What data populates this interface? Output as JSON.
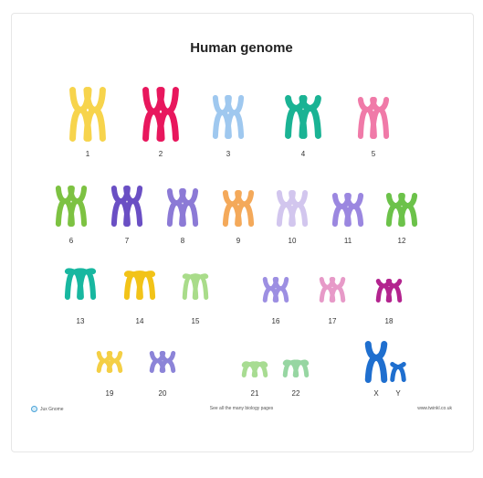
{
  "title": "Human genome",
  "footer": {
    "left": "Jux Gnome",
    "center": "See all the many biology pages",
    "right": "www.twinkl.co.uk"
  },
  "chromosomes": [
    {
      "label": "1",
      "color": "#f7d44c"
    },
    {
      "label": "2",
      "color": "#e8175d"
    },
    {
      "label": "3",
      "color": "#9fc8ef"
    },
    {
      "label": "4",
      "color": "#1ab394"
    },
    {
      "label": "5",
      "color": "#f07aa8"
    },
    {
      "label": "6",
      "color": "#7dc242"
    },
    {
      "label": "7",
      "color": "#6a4fc4"
    },
    {
      "label": "8",
      "color": "#8c7ad6"
    },
    {
      "label": "9",
      "color": "#f4a95a"
    },
    {
      "label": "10",
      "color": "#d2c6ee"
    },
    {
      "label": "11",
      "color": "#9b87e0"
    },
    {
      "label": "12",
      "color": "#6cc24a"
    },
    {
      "label": "13",
      "color": "#18b7a0"
    },
    {
      "label": "14",
      "color": "#f2c318"
    },
    {
      "label": "15",
      "color": "#a9dc8a"
    },
    {
      "label": "16",
      "color": "#9d8fe2"
    },
    {
      "label": "17",
      "color": "#e79ac8"
    },
    {
      "label": "18",
      "color": "#b3248f"
    },
    {
      "label": "19",
      "color": "#f4cf45"
    },
    {
      "label": "20",
      "color": "#8c84d8"
    },
    {
      "label": "21",
      "color": "#a8dc92"
    },
    {
      "label": "22",
      "color": "#97d6a2"
    },
    {
      "label": "X",
      "color": "#1f6fcf"
    },
    {
      "label": "Y",
      "color": "#1f6fcf"
    }
  ]
}
